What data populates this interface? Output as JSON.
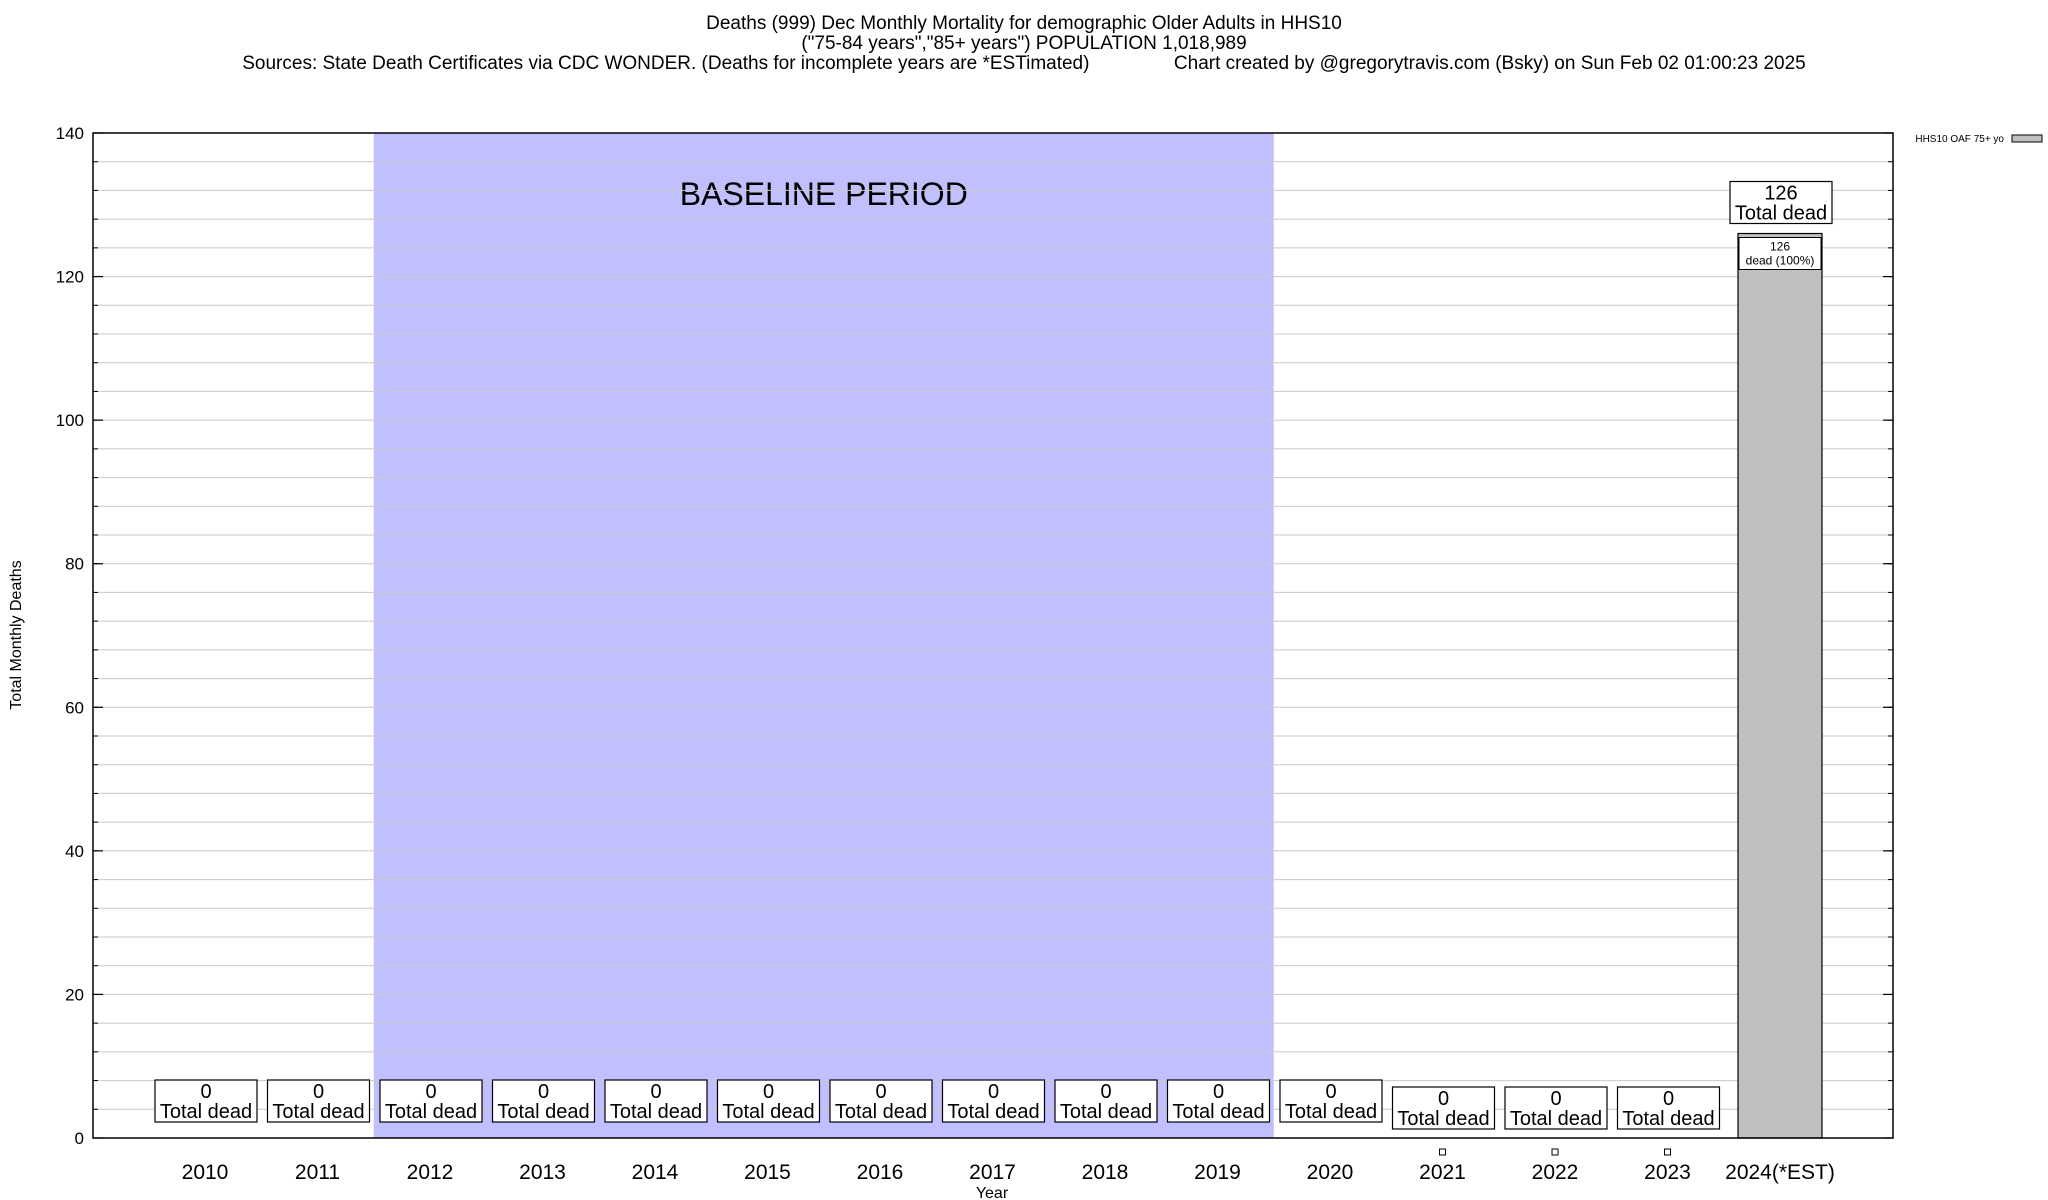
{
  "title": {
    "line1": "Deaths (999) Dec Monthly Mortality for demographic Older Adults in HHS10",
    "line2": "(\"75-84 years\",\"85+ years\") POPULATION 1,018,989",
    "line3": "Sources: State Death Certificates via CDC WONDER. (Deaths for incomplete years are *ESTimated)                Chart created by @gregorytravis.com (Bsky) on Sun Feb 02 01:00:23 2025"
  },
  "chart_data": {
    "type": "bar",
    "title": "Deaths (999) Dec Monthly Mortality for demographic Older Adults in HHS10",
    "xlabel": "Year",
    "ylabel": "Total Monthly Deaths",
    "ylim": [
      0,
      140
    ],
    "yticks": [
      0,
      20,
      40,
      60,
      80,
      100,
      120,
      140
    ],
    "grid": true,
    "legend_position": "top-right",
    "categories": [
      "2010",
      "2011",
      "2012",
      "2013",
      "2014",
      "2015",
      "2016",
      "2017",
      "2018",
      "2019",
      "2020",
      "2021",
      "2022",
      "2023",
      "2024(*EST)"
    ],
    "series": [
      {
        "name": "HHS10 OAF 75+ yo",
        "color": "#c0c0c0",
        "values": [
          0,
          0,
          0,
          0,
          0,
          0,
          0,
          0,
          0,
          0,
          0,
          0,
          0,
          0,
          126
        ]
      }
    ],
    "total_labels": [
      "0",
      "0",
      "0",
      "0",
      "0",
      "0",
      "0",
      "0",
      "0",
      "0",
      "0",
      "0",
      "0",
      "0",
      "126"
    ],
    "total_label_suffix": "Total dead",
    "inner_labels": [
      {
        "category": "2024(*EST)",
        "line1": "126",
        "line2": "dead (100%)"
      }
    ],
    "baseline_period": {
      "label": "BASELINE PERIOD",
      "start": "2012",
      "end": "2019",
      "color": "#c0c0ff"
    }
  }
}
